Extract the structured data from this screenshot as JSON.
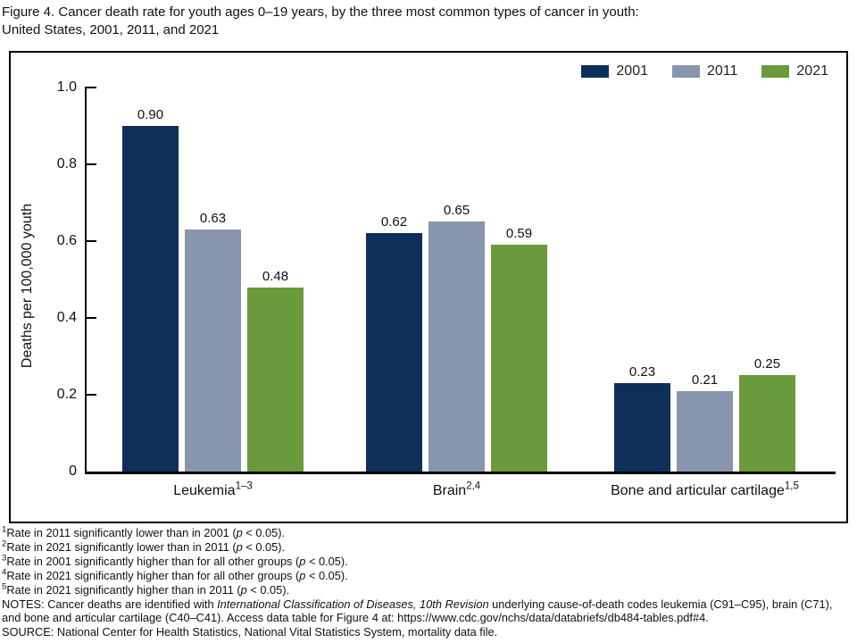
{
  "figure": {
    "title_line1": "Figure 4. Cancer death rate for youth ages 0–19 years, by the three most common types of cancer in youth:",
    "title_line2": "United States, 2001, 2011, and 2021"
  },
  "colors": {
    "series_2001": "#0d2f5a",
    "series_2011": "#8796ad",
    "series_2021": "#6a9a3b",
    "axis": "#000000"
  },
  "chart_data": {
    "type": "bar",
    "title": "Figure 4. Cancer death rate for youth ages 0–19 years, by the three most common types of cancer in youth: United States, 2001, 2011, and 2021",
    "ylabel": "Deaths per 100,000 youth",
    "xlabel": "",
    "ylim": [
      0,
      1.0
    ],
    "yticks": [
      {
        "value": 0,
        "label": "0"
      },
      {
        "value": 0.2,
        "label": "0.2"
      },
      {
        "value": 0.4,
        "label": "0.4"
      },
      {
        "value": 0.6,
        "label": "0.6"
      },
      {
        "value": 0.8,
        "label": "0.8"
      },
      {
        "value": 1.0,
        "label": "1.0"
      }
    ],
    "grid": false,
    "legend_position": "top-right",
    "categories": [
      {
        "text": "Leukemia",
        "sup": "1–3"
      },
      {
        "text": "Brain",
        "sup": "2,4"
      },
      {
        "text": "Bone and articular cartilage",
        "sup": "1,5"
      }
    ],
    "series": [
      {
        "name": "2001",
        "color": "#0d2f5a",
        "values": [
          0.9,
          0.62,
          0.23
        ],
        "labels": [
          "0.90",
          "0.62",
          "0.23"
        ]
      },
      {
        "name": "2011",
        "color": "#8796ad",
        "values": [
          0.63,
          0.65,
          0.21
        ],
        "labels": [
          "0.63",
          "0.65",
          "0.21"
        ]
      },
      {
        "name": "2021",
        "color": "#6a9a3b",
        "values": [
          0.48,
          0.59,
          0.25
        ],
        "labels": [
          "0.48",
          "0.59",
          "0.25"
        ]
      }
    ]
  },
  "footnotes": [
    [
      {
        "t": "1",
        "s": "sup"
      },
      {
        "t": "Rate in 2011 significantly lower than in 2001 (",
        "s": "n"
      },
      {
        "t": "p",
        "s": "i"
      },
      {
        "t": " < 0.05).",
        "s": "n"
      }
    ],
    [
      {
        "t": "2",
        "s": "sup"
      },
      {
        "t": "Rate in 2021 significantly lower than in 2011 (",
        "s": "n"
      },
      {
        "t": "p",
        "s": "i"
      },
      {
        "t": " < 0.05).",
        "s": "n"
      }
    ],
    [
      {
        "t": "3",
        "s": "sup"
      },
      {
        "t": "Rate in 2001 significantly higher than for all other groups (",
        "s": "n"
      },
      {
        "t": "p",
        "s": "i"
      },
      {
        "t": " < 0.05).",
        "s": "n"
      }
    ],
    [
      {
        "t": "4",
        "s": "sup"
      },
      {
        "t": "Rate in 2021 significantly higher than for all other groups (",
        "s": "n"
      },
      {
        "t": "p",
        "s": "i"
      },
      {
        "t": " < 0.05).",
        "s": "n"
      }
    ],
    [
      {
        "t": "5",
        "s": "sup"
      },
      {
        "t": "Rate in 2021 significantly higher than in 2011 (",
        "s": "n"
      },
      {
        "t": "p",
        "s": "i"
      },
      {
        "t": " < 0.05).",
        "s": "n"
      }
    ]
  ],
  "notes": [
    {
      "t": "NOTES: Cancer deaths are identified with ",
      "s": "n"
    },
    {
      "t": "International Classification of Diseases, 10th Revision",
      "s": "i"
    },
    {
      "t": " underlying cause-of-death codes leukemia (C91–C95), brain (C71), and bone and articular cartilage (C40–C41). Access data table for Figure 4 at: https://www.cdc.gov/nchs/data/databriefs/db484-tables.pdf#4.",
      "s": "n"
    }
  ],
  "source": "SOURCE: National Center for Health Statistics, National Vital Statistics System, mortality data file."
}
